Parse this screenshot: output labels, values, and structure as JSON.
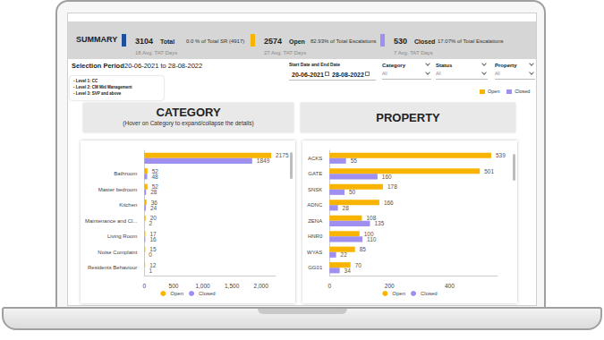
{
  "summary": {
    "title": "SUMMARY",
    "cards": [
      {
        "value": 3104,
        "label": "Total",
        "note": "0.0 % of Total SR (4917)",
        "avg": "18 Avg. TAT Days",
        "color": "#1f4e9c"
      },
      {
        "value": 2574,
        "label": "Open",
        "note": "82.93% of Total Escalations",
        "avg": "27 Avg. TAT Days",
        "color": "#f8b400"
      },
      {
        "value": 530,
        "label": "Closed",
        "note": "17.07% of Total Escalations",
        "avg": "7 Avg. TAT Days",
        "color": "#9f8ff0"
      }
    ]
  },
  "selection_period": {
    "label": "Selection Period",
    "from": "20-06-2021",
    "joiner": "to",
    "to": "28-08-2022"
  },
  "levels": [
    "- Level 1: CC",
    "- Level 2: CM Mid Management",
    "- Level 3: SVP and above"
  ],
  "filters": {
    "dates": {
      "label": "Start Date and End Date",
      "from": "20-06-2021",
      "to": "28-08-2022"
    },
    "dropdowns": [
      {
        "label": "Category",
        "value": "All"
      },
      {
        "label": "Status",
        "value": "All"
      },
      {
        "label": "Property",
        "value": "All"
      }
    ]
  },
  "chart_data": [
    {
      "type": "bar",
      "title": "CATEGORY",
      "subtitle": "(Hover on Category to expand/collapse the details)",
      "orientation": "horizontal",
      "categories": [
        null,
        "Bathroom",
        "Master bedroom",
        "Kitchen",
        "Maintenance and Cl...",
        "Living Room",
        "Noise Complaint",
        "Residents Behaviour"
      ],
      "series": [
        {
          "name": "Open",
          "color": "#f8b400",
          "values": [
            2175,
            52,
            52,
            36,
            20,
            17,
            15,
            12
          ]
        },
        {
          "name": "Closed",
          "color": "#9f8ff0",
          "values": [
            1849,
            48,
            28,
            24,
            2,
            16,
            0,
            1
          ]
        }
      ],
      "xlim": [
        0,
        2250
      ],
      "xticks": [
        0,
        500,
        1000,
        1500,
        2000
      ],
      "grid": false,
      "data_labels": true,
      "legend": "bottom"
    },
    {
      "type": "bar",
      "title": "PROPERTY",
      "orientation": "horizontal",
      "categories": [
        "ACKS",
        "GATE",
        "SNSK",
        "ADNC",
        "ZENA",
        "HNR0",
        "WYAS",
        "GG01"
      ],
      "series": [
        {
          "name": "Open",
          "color": "#f8b400",
          "values": [
            539,
            501,
            178,
            166,
            108,
            100,
            85,
            70
          ]
        },
        {
          "name": "Closed",
          "color": "#9f8ff0",
          "values": [
            55,
            160,
            50,
            28,
            135,
            110,
            22,
            34
          ]
        }
      ],
      "xlim": [
        0,
        560
      ],
      "xticks": [
        0,
        200,
        400
      ],
      "grid": false,
      "data_labels": true,
      "legend": "bottom"
    }
  ]
}
